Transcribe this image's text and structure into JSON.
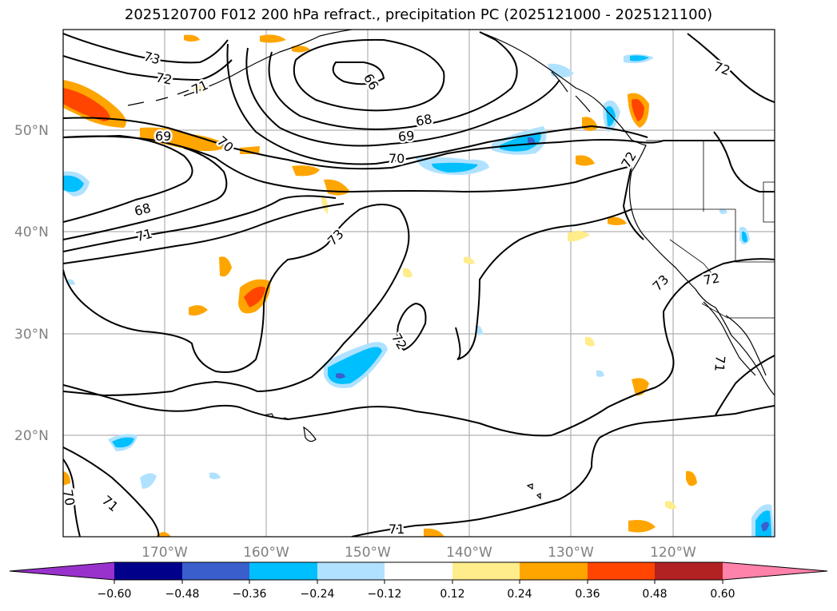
{
  "title": "2025120700 F012 200 hPa refract., precipitation PC (2025121000 - 2025121100)",
  "map": {
    "projection": "PlateCarree",
    "extent": {
      "lon_min": -180,
      "lon_max": -110,
      "lat_min": 10,
      "lat_max": 60
    },
    "lat_labels": [
      "50°N",
      "40°N",
      "30°N",
      "20°N"
    ],
    "lon_labels": [
      "170°W",
      "160°W",
      "150°W",
      "140°W",
      "130°W",
      "120°W"
    ],
    "contour_labels": [
      "73",
      "72",
      "71",
      "69",
      "66",
      "68",
      "70",
      "69",
      "70",
      "72",
      "68",
      "71",
      "73",
      "72",
      "73",
      "72",
      "71",
      "70",
      "71",
      "71"
    ]
  },
  "colorbar": {
    "ticks": [
      "−0.60",
      "−0.48",
      "−0.36",
      "−0.24",
      "−0.12",
      "0.12",
      "0.24",
      "0.36",
      "0.48",
      "0.60"
    ],
    "colors": [
      "#9932cc",
      "#00008b",
      "#3a5fcd",
      "#00bfff",
      "#b0e2ff",
      "#ffffff",
      "#ffec8b",
      "#ffa500",
      "#ff4500",
      "#b22222",
      "#ff82ab"
    ]
  }
}
